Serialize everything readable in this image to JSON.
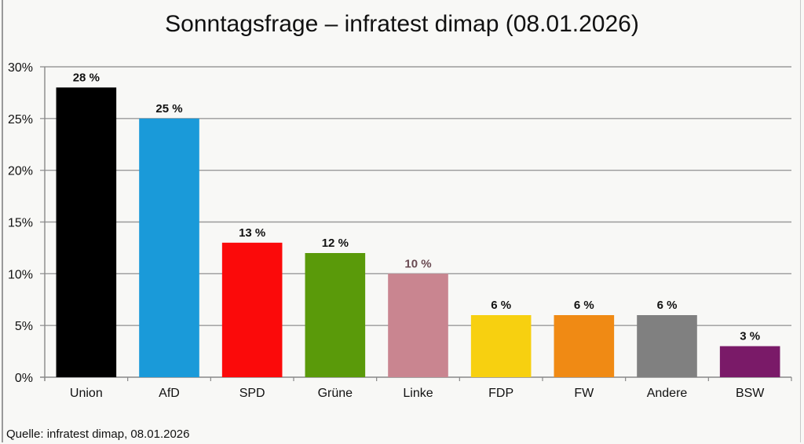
{
  "chart_data": {
    "type": "bar",
    "title": "Sonntagsfrage – infratest dimap (08.01.2026)",
    "xlabel": "",
    "ylabel": "",
    "ylim": [
      0,
      30
    ],
    "yticks": [
      0,
      5,
      10,
      15,
      20,
      25,
      30
    ],
    "ytick_labels": [
      "0%",
      "5%",
      "10%",
      "15%",
      "20%",
      "25%",
      "30%"
    ],
    "grid": true,
    "categories": [
      "Union",
      "AfD",
      "SPD",
      "Grüne",
      "Linke",
      "FDP",
      "FW",
      "Andere",
      "BSW"
    ],
    "values": [
      28,
      25,
      13,
      12,
      10,
      6,
      6,
      6,
      3
    ],
    "data_labels": [
      "28 %",
      "25 %",
      "13 %",
      "12 %",
      "10 %",
      "6 %",
      "6 %",
      "6 %",
      "3 %"
    ],
    "colors": [
      "#000000",
      "#1a9ad9",
      "#fb0a0a",
      "#5a9a0a",
      "#c98590",
      "#f7d010",
      "#f08a14",
      "#808080",
      "#7a1a68"
    ],
    "label_colors": [
      "#111111",
      "#111111",
      "#111111",
      "#111111",
      "#6a4a52",
      "#111111",
      "#111111",
      "#111111",
      "#111111"
    ],
    "source": "Quelle: infratest dimap, 08.01.2026"
  }
}
